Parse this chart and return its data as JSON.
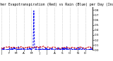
{
  "title": "Milwaukee Weather Evapotranspiration (Red) vs Rain (Blue) per Day (Inches)",
  "title_fontsize": 3.5,
  "background_color": "#ffffff",
  "grid_color": "#aaaaaa",
  "ylim": [
    0,
    0.85
  ],
  "yticks": [
    0.0,
    0.1,
    0.2,
    0.3,
    0.4,
    0.5,
    0.6,
    0.7,
    0.8
  ],
  "ylabel_fontsize": 3.0,
  "xlabel_fontsize": 3.0,
  "n_points": 365,
  "rain_spike_index": 130,
  "rain_spike_value": 0.78,
  "rain_color": "#0000ee",
  "et_color": "#cc0000",
  "month_ticks": [
    0,
    31,
    59,
    90,
    120,
    151,
    181,
    212,
    243,
    273,
    304,
    334
  ],
  "month_labels": [
    "J",
    "F",
    "M",
    "A",
    "M",
    "J",
    "J",
    "A",
    "S",
    "O",
    "N",
    "D"
  ]
}
